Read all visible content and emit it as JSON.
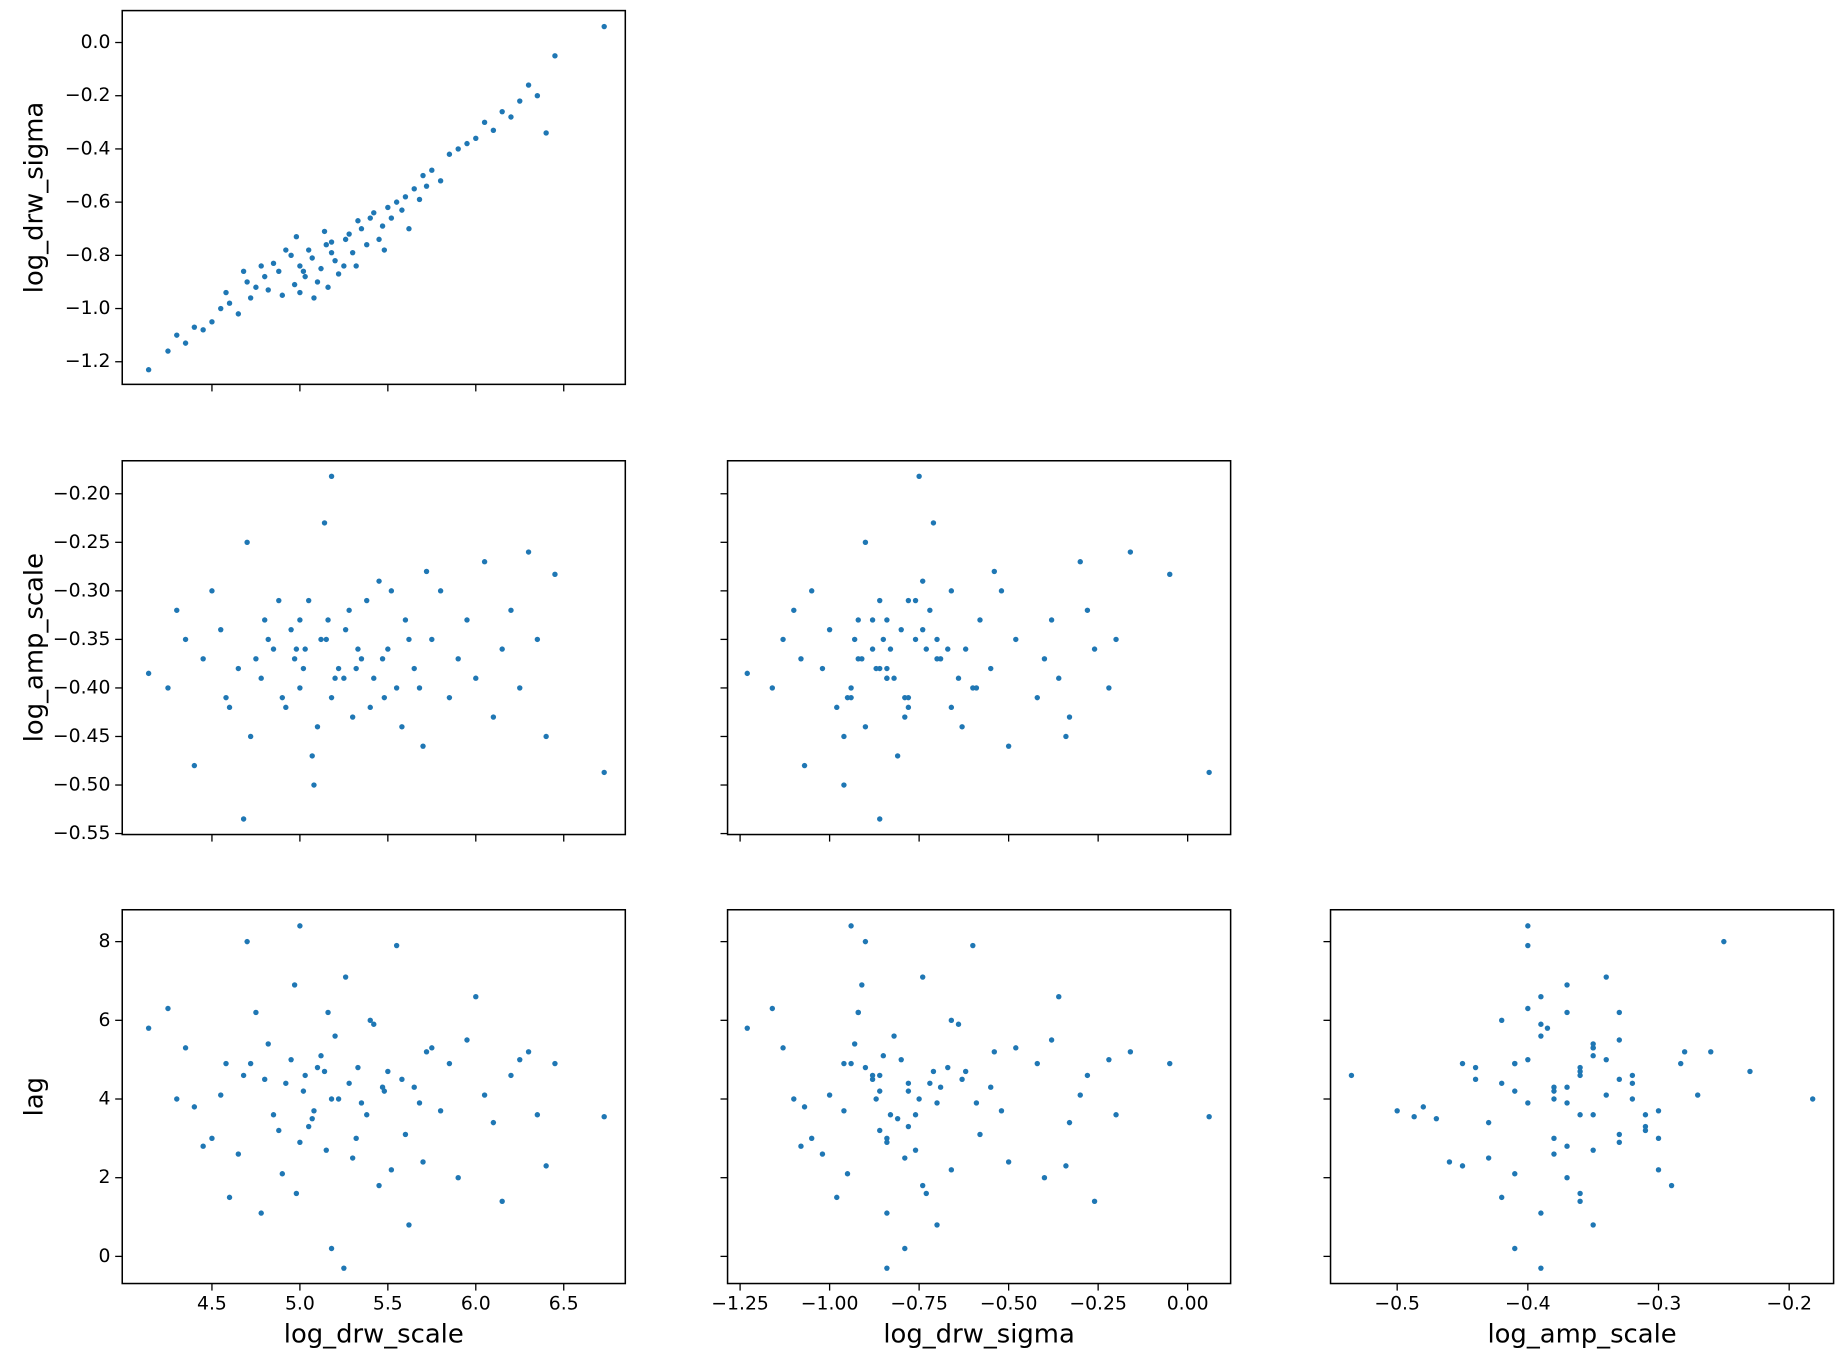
{
  "chart_data": {
    "type": "pairplot",
    "color": "#1f77b4",
    "variables": [
      {
        "name": "log_drw_scale",
        "xlim": [
          3.99,
          6.85
        ],
        "xticks": [
          4.5,
          {
            "value": 5,
            "label": "5.0"
          },
          5.5,
          {
            "value": 6,
            "label": "6.0"
          },
          6.5
        ],
        "values": [
          6.73,
          5.18,
          5.0,
          5.25,
          4.68,
          4.14,
          6.45,
          6.3,
          6.4,
          4.35,
          4.5,
          4.6,
          4.75,
          4.8,
          4.85,
          4.9,
          4.95,
          5.02,
          5.05,
          5.1,
          5.15,
          5.2,
          5.28,
          5.35,
          5.4,
          5.45,
          5.5,
          5.55,
          5.6,
          5.65,
          5.7,
          5.75,
          5.8,
          5.85,
          5.9,
          5.95,
          6.0,
          6.05,
          6.1,
          6.15,
          6.2,
          6.25,
          4.4,
          4.55,
          4.65,
          4.7,
          4.72,
          4.78,
          4.82,
          4.88,
          4.92,
          4.97,
          5.0,
          5.03,
          5.07,
          5.12,
          5.14,
          5.18,
          5.22,
          5.26,
          5.3,
          5.33,
          5.38,
          5.42,
          5.47,
          5.52,
          5.58,
          5.62,
          5.68,
          5.72,
          4.25,
          4.3,
          4.45,
          4.58,
          5.08,
          4.98,
          5.16,
          5.32,
          5.48,
          6.35
        ]
      },
      {
        "name": "log_drw_sigma",
        "xlim": [
          -1.285,
          0.12
        ],
        "xticks": [
          {
            "value": -1.25,
            "label": "−1.25"
          },
          {
            "value": -1,
            "label": "−1.00"
          },
          {
            "value": -0.75,
            "label": "−0.75"
          },
          {
            "value": -0.5,
            "label": "−0.50"
          },
          {
            "value": -0.25,
            "label": "−0.25"
          },
          {
            "value": 0,
            "label": "0.00"
          }
        ],
        "ylim": [
          -1.285,
          0.12
        ],
        "yticks": [
          {
            "value": -1.2,
            "label": "−1.2"
          },
          {
            "value": -1,
            "label": "−1.0"
          },
          {
            "value": -0.8,
            "label": "−0.8"
          },
          {
            "value": -0.6,
            "label": "−0.6"
          },
          {
            "value": -0.4,
            "label": "−0.4"
          },
          {
            "value": -0.2,
            "label": "−0.2"
          },
          {
            "value": 0,
            "label": "0.0"
          }
        ],
        "values": [
          0.06,
          -0.75,
          -0.94,
          -0.84,
          -0.86,
          -1.23,
          -0.05,
          -0.16,
          -0.34,
          -1.13,
          -1.05,
          -0.98,
          -0.92,
          -0.88,
          -0.83,
          -0.95,
          -0.8,
          -0.86,
          -0.78,
          -0.9,
          -0.76,
          -0.82,
          -0.72,
          -0.7,
          -0.66,
          -0.74,
          -0.62,
          -0.6,
          -0.58,
          -0.55,
          -0.5,
          -0.48,
          -0.52,
          -0.42,
          -0.4,
          -0.38,
          -0.36,
          -0.3,
          -0.33,
          -0.26,
          -0.28,
          -0.22,
          -1.07,
          -1.0,
          -1.02,
          -0.9,
          -0.96,
          -0.84,
          -0.93,
          -0.86,
          -0.78,
          -0.91,
          -0.84,
          -0.88,
          -0.81,
          -0.85,
          -0.71,
          -0.79,
          -0.87,
          -0.74,
          -0.79,
          -0.67,
          -0.76,
          -0.64,
          -0.69,
          -0.66,
          -0.63,
          -0.7,
          -0.59,
          -0.54,
          -1.16,
          -1.1,
          -1.08,
          -0.94,
          -0.96,
          -0.73,
          -0.92,
          -0.84,
          -0.78,
          -0.2
        ]
      },
      {
        "name": "log_amp_scale",
        "xlim": [
          -0.551,
          -0.166
        ],
        "xticks": [
          {
            "value": -0.5,
            "label": "−0.5"
          },
          {
            "value": -0.4,
            "label": "−0.4"
          },
          {
            "value": -0.3,
            "label": "−0.3"
          },
          {
            "value": -0.2,
            "label": "−0.2"
          }
        ],
        "ylim": [
          -0.551,
          -0.166
        ],
        "yticks": [
          {
            "value": -0.55,
            "label": "−0.55"
          },
          {
            "value": -0.5,
            "label": "−0.50"
          },
          {
            "value": -0.45,
            "label": "−0.45"
          },
          {
            "value": -0.4,
            "label": "−0.40"
          },
          {
            "value": -0.35,
            "label": "−0.35"
          },
          {
            "value": -0.3,
            "label": "−0.30"
          },
          {
            "value": -0.25,
            "label": "−0.25"
          },
          {
            "value": -0.2,
            "label": "−0.20"
          }
        ],
        "values": [
          -0.487,
          -0.182,
          -0.4,
          -0.39,
          -0.535,
          -0.385,
          -0.283,
          -0.26,
          -0.45,
          -0.35,
          -0.3,
          -0.42,
          -0.37,
          -0.33,
          -0.36,
          -0.41,
          -0.34,
          -0.38,
          -0.31,
          -0.44,
          -0.35,
          -0.39,
          -0.32,
          -0.37,
          -0.42,
          -0.29,
          -0.36,
          -0.4,
          -0.33,
          -0.38,
          -0.46,
          -0.35,
          -0.3,
          -0.41,
          -0.37,
          -0.33,
          -0.39,
          -0.27,
          -0.43,
          -0.36,
          -0.32,
          -0.4,
          -0.48,
          -0.34,
          -0.38,
          -0.25,
          -0.45,
          -0.39,
          -0.35,
          -0.31,
          -0.42,
          -0.37,
          -0.33,
          -0.36,
          -0.47,
          -0.35,
          -0.23,
          -0.41,
          -0.38,
          -0.34,
          -0.43,
          -0.36,
          -0.31,
          -0.39,
          -0.37,
          -0.3,
          -0.44,
          -0.35,
          -0.4,
          -0.28,
          -0.4,
          -0.32,
          -0.37,
          -0.41,
          -0.5,
          -0.36,
          -0.33,
          -0.38,
          -0.41,
          -0.35
        ]
      },
      {
        "name": "lag",
        "ylim": [
          -0.69,
          8.81
        ],
        "yticks": [
          0,
          2,
          4,
          6,
          8
        ],
        "values": [
          3.55,
          4.0,
          8.4,
          -0.3,
          4.6,
          5.8,
          4.9,
          5.2,
          2.3,
          5.3,
          3.0,
          1.5,
          6.2,
          4.5,
          3.6,
          2.1,
          5.0,
          4.2,
          3.3,
          4.8,
          2.7,
          5.6,
          4.4,
          3.9,
          6.0,
          1.8,
          4.7,
          7.9,
          3.1,
          4.3,
          2.4,
          5.3,
          3.7,
          4.9,
          2.0,
          5.5,
          6.6,
          4.1,
          3.4,
          1.4,
          4.6,
          5.0,
          3.8,
          4.1,
          2.6,
          8.0,
          4.9,
          1.1,
          5.4,
          3.2,
          4.4,
          6.9,
          2.9,
          4.6,
          3.5,
          5.1,
          4.7,
          0.2,
          4.0,
          7.1,
          2.5,
          4.8,
          3.6,
          5.9,
          4.3,
          2.2,
          4.5,
          0.8,
          3.9,
          5.2,
          6.3,
          4.0,
          2.8,
          4.9,
          3.7,
          1.6,
          6.2,
          3.0,
          4.2,
          3.6
        ]
      }
    ]
  }
}
